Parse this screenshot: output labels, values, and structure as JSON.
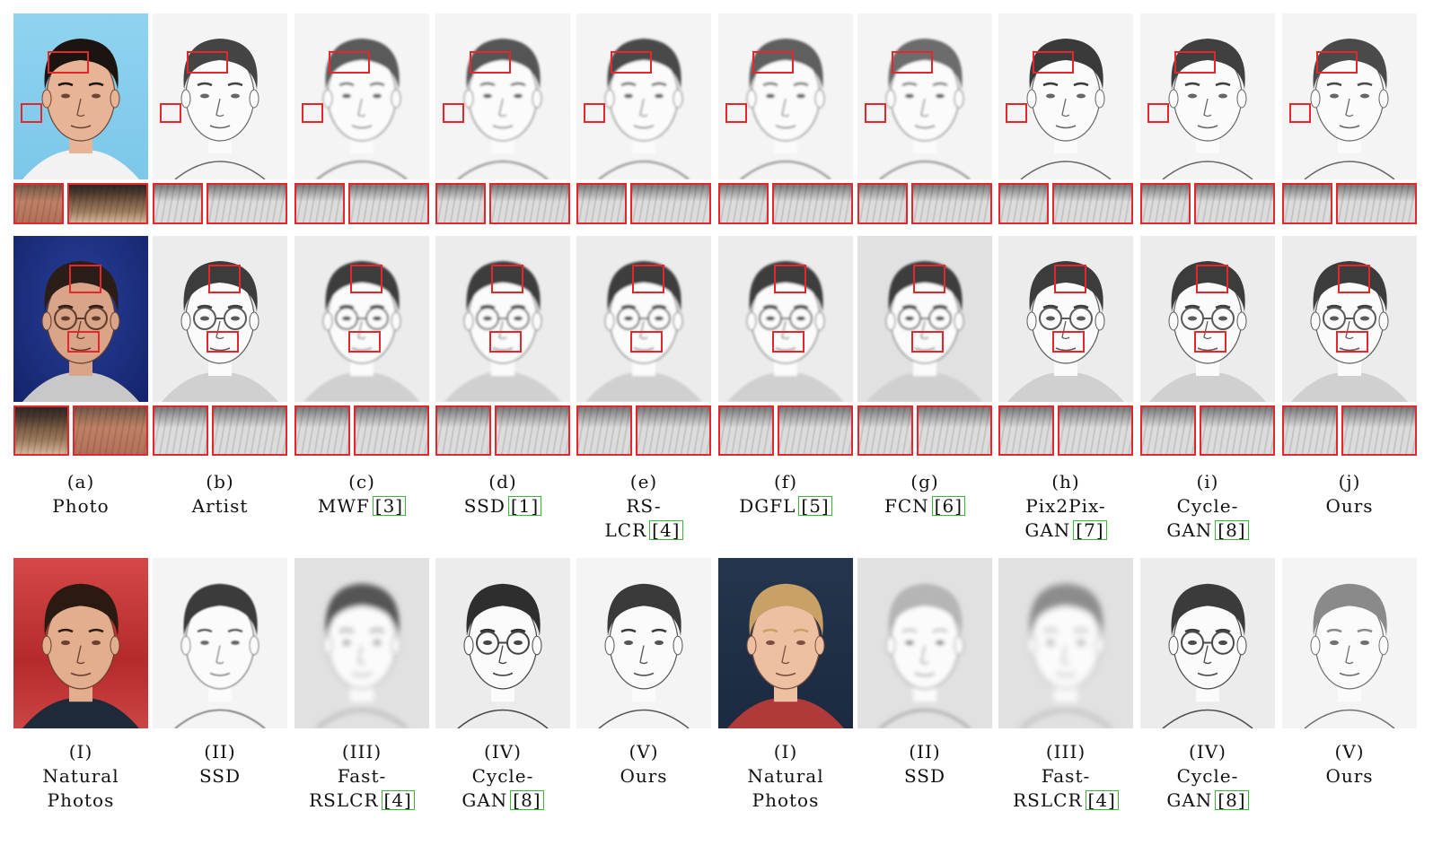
{
  "top_captions": [
    {
      "letter": "(a)",
      "lines": [
        "Photo"
      ],
      "cite": ""
    },
    {
      "letter": "(b)",
      "lines": [
        "Artist"
      ],
      "cite": ""
    },
    {
      "letter": "(c)",
      "lines": [
        "MWF"
      ],
      "cite": "[3]"
    },
    {
      "letter": "(d)",
      "lines": [
        "SSD"
      ],
      "cite": "[1]"
    },
    {
      "letter": "(e)",
      "lines": [
        "RS-",
        "LCR"
      ],
      "cite": "[4]"
    },
    {
      "letter": "(f)",
      "lines": [
        "DGFL"
      ],
      "cite": "[5]"
    },
    {
      "letter": "(g)",
      "lines": [
        "FCN"
      ],
      "cite": "[6]"
    },
    {
      "letter": "(h)",
      "lines": [
        "Pix2Pix-",
        "GAN"
      ],
      "cite": "[7]"
    },
    {
      "letter": "(i)",
      "lines": [
        "Cycle-",
        "GAN"
      ],
      "cite": "[8]"
    },
    {
      "letter": "(j)",
      "lines": [
        "Ours"
      ],
      "cite": ""
    }
  ],
  "bottom_captions": [
    {
      "letter": "(I)",
      "lines": [
        "Natural",
        "Photos"
      ],
      "cite": ""
    },
    {
      "letter": "(II)",
      "lines": [
        "SSD"
      ],
      "cite": ""
    },
    {
      "letter": "(III)",
      "lines": [
        "Fast-",
        "RSLCR"
      ],
      "cite": "[4]"
    },
    {
      "letter": "(IV)",
      "lines": [
        "Cycle-",
        "GAN"
      ],
      "cite": "[8]"
    },
    {
      "letter": "(V)",
      "lines": [
        "Ours"
      ],
      "cite": ""
    },
    {
      "letter": "(I)",
      "lines": [
        "Natural",
        "Photos"
      ],
      "cite": ""
    },
    {
      "letter": "(II)",
      "lines": [
        "SSD"
      ],
      "cite": ""
    },
    {
      "letter": "(III)",
      "lines": [
        "Fast-",
        "RSLCR"
      ],
      "cite": "[4]"
    },
    {
      "letter": "(IV)",
      "lines": [
        "Cycle-",
        "GAN"
      ],
      "cite": "[8]"
    },
    {
      "letter": "(V)",
      "lines": [
        "Ours"
      ],
      "cite": ""
    }
  ],
  "colors": {
    "highlight_box": "#e5262b",
    "citation_box": "#38b838"
  }
}
